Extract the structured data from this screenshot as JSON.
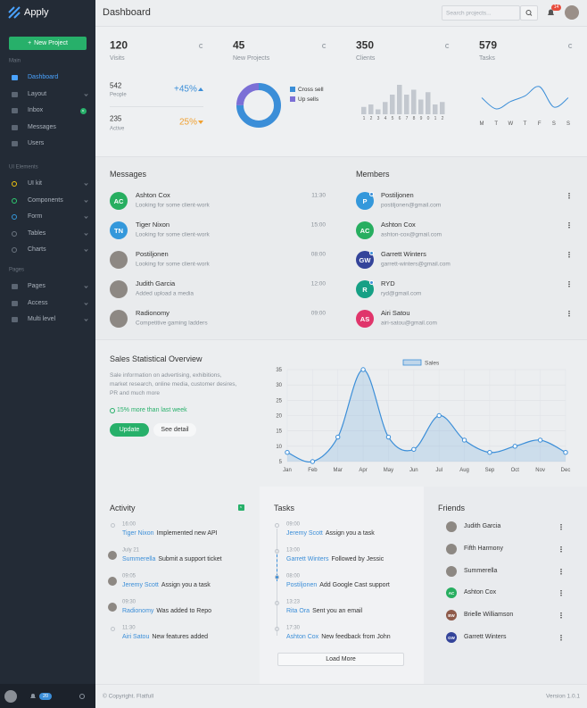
{
  "sidebar": {
    "brand": "Apply",
    "new_project": "New Project",
    "sections": [
      {
        "title": "Main",
        "items": [
          "Dashboard",
          "Layout",
          "Inbox",
          "Messages",
          "Users"
        ]
      },
      {
        "title": "UI Elements",
        "items": [
          "UI kit",
          "Components",
          "Form",
          "Tables",
          "Charts"
        ]
      },
      {
        "title": "Pages",
        "items": [
          "Pages",
          "Access",
          "Multi level"
        ]
      }
    ],
    "inbox_badge": "8",
    "notification_badge": "20"
  },
  "header": {
    "title": "Dashboard",
    "search_placeholder": "Search projects...",
    "notification_badge": "14"
  },
  "stats": [
    {
      "value": 120,
      "label": "Visits"
    },
    {
      "value": 45,
      "label": "New Projects"
    },
    {
      "value": 350,
      "label": "Clients"
    },
    {
      "value": 579,
      "label": "Tasks"
    }
  ],
  "overview": {
    "people": {
      "value": 542,
      "label": "People",
      "change": "+45%"
    },
    "active": {
      "value": 235,
      "label": "Active",
      "change": "25%"
    }
  },
  "messages": {
    "title": "Messages",
    "items": [
      {
        "initials": "AC",
        "name": "Ashton Cox",
        "text": "Looking for some client-work",
        "time": "11:30"
      },
      {
        "initials": "TN",
        "name": "Tiger Nixon",
        "text": "Looking for some client-work",
        "time": "15:00"
      },
      {
        "name": "Postiljonen",
        "text": "Looking for some client-work",
        "time": "08:00"
      },
      {
        "name": "Judith Garcia",
        "text": "Added upload a media",
        "time": "12:00"
      },
      {
        "name": "Radionomy",
        "text": "Competitive gaming ladders",
        "time": "09:00"
      }
    ]
  },
  "members": {
    "title": "Members",
    "items": [
      {
        "initials": "P",
        "name": "Postiljonen",
        "email": "postiljonen@gmail.com"
      },
      {
        "initials": "AC",
        "name": "Ashton Cox",
        "email": "ashton-cox@gmail.com"
      },
      {
        "initials": "GW",
        "name": "Garrett Winters",
        "email": "garrett-winters@gmail.com"
      },
      {
        "initials": "R",
        "name": "RYD",
        "email": "ryd@gmail.com"
      },
      {
        "initials": "AS",
        "name": "Airi Satou",
        "email": "airi-satou@gmail.com"
      }
    ]
  },
  "sales": {
    "title": "Sales Statistical Overview",
    "description": "Sale information on advertising, exhibitions, market research, online media, customer desires, PR and much more",
    "growth": "15% more than last week",
    "update": "Update",
    "detail": "See detail"
  },
  "activity": {
    "title": "Activity",
    "badge": "5",
    "items": [
      {
        "time": "16:00",
        "name": "Tiger Nixon",
        "action": "Implemented new API"
      },
      {
        "time": "July 21",
        "name": "Summerella",
        "action": "Submit a support ticket"
      },
      {
        "time": "09:05",
        "name": "Jeremy Scott",
        "action": "Assign you a task"
      },
      {
        "time": "09:30",
        "name": "Radionomy",
        "action": "Was added to Repo"
      },
      {
        "time": "11:30",
        "name": "Airi Satou",
        "action": "New features added"
      }
    ]
  },
  "tasks": {
    "title": "Tasks",
    "items": [
      {
        "time": "09:00",
        "name": "Jeremy Scott",
        "action": "Assign you a task"
      },
      {
        "time": "13:00",
        "name": "Garrett Winters",
        "action": "Followed by Jessic"
      },
      {
        "time": "08:00",
        "name": "Postiljonen",
        "action": "Add Google Cast support"
      },
      {
        "time": "13:23",
        "name": "Rita Ora",
        "action": "Sent you an email"
      },
      {
        "time": "17:30",
        "name": "Ashton Cox",
        "action": "New feedback from John"
      }
    ],
    "load_more": "Load More"
  },
  "friends": {
    "title": "Friends",
    "items": [
      {
        "name": "Judith Garcia"
      },
      {
        "name": "Fifth Harmony"
      },
      {
        "name": "Summerella"
      },
      {
        "initials": "AC",
        "name": "Ashton Cox"
      },
      {
        "initials": "BW",
        "name": "Brielle Williamson"
      },
      {
        "initials": "GW",
        "name": "Garrett Winters"
      }
    ]
  },
  "footer": {
    "copyright": "© Copyright. Flatfull",
    "version": "Version 1.0.1"
  },
  "chart_data": [
    {
      "type": "line",
      "categories": [
        "Jan",
        "Feb",
        "Mar",
        "Apr",
        "May",
        "Jun",
        "Jul",
        "Aug",
        "Sep",
        "Oct",
        "Nov",
        "Dec"
      ],
      "series": [
        {
          "name": "Sales",
          "color": "#3b8ed8",
          "values": [
            8,
            5,
            13,
            35,
            13,
            9,
            20,
            12,
            8,
            10,
            12,
            8
          ]
        }
      ],
      "ylim": [
        5,
        35
      ],
      "yticks": [
        5,
        10,
        15,
        20,
        25,
        30,
        35
      ],
      "grid": true
    },
    {
      "type": "pie",
      "categories": [
        "Cross sell",
        "Up sells"
      ],
      "values": [
        75,
        25
      ],
      "colors": [
        "#3b8ed8",
        "#7b6fd6"
      ]
    },
    {
      "type": "bar",
      "categories": [
        "1",
        "2",
        "3",
        "4",
        "5",
        "6",
        "7",
        "8",
        "9",
        "0",
        "1",
        "2"
      ],
      "values": [
        3,
        4,
        2,
        5,
        8,
        12,
        8,
        10,
        6,
        9,
        4,
        5
      ],
      "color": "#c3c8cf"
    },
    {
      "type": "line",
      "categories": [
        "M",
        "T",
        "W",
        "T",
        "F",
        "S",
        "S"
      ],
      "series": [
        {
          "color": "#3b8ed8",
          "values": [
            5,
            2,
            4,
            5.5,
            8,
            2.5,
            5
          ]
        }
      ]
    }
  ]
}
